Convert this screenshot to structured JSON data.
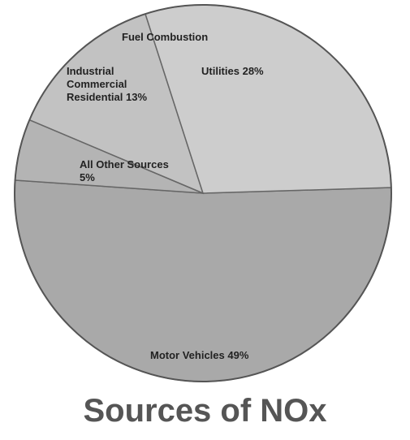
{
  "chart_data": {
    "type": "pie",
    "title": "Sources of NOx",
    "annotation": "Fuel Combustion",
    "categories": [
      "Motor Vehicles",
      "All Other Sources",
      "Industrial Commercial Residential",
      "Utilities"
    ],
    "values": [
      49,
      5,
      13,
      28
    ],
    "value_labels": [
      "49%",
      "5%",
      "13%",
      "28%"
    ],
    "colors": [
      "#a9a9a9",
      "#b4b4b4",
      "#c2c2c2",
      "#cdcdcd"
    ]
  }
}
